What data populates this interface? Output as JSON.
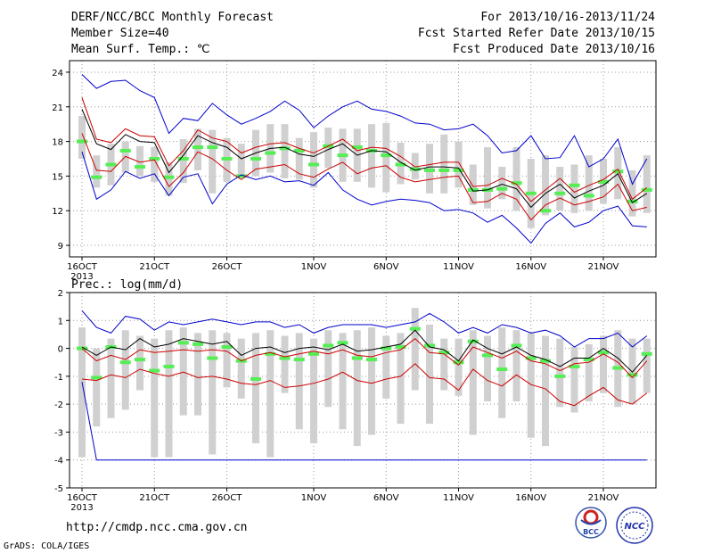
{
  "header": {
    "title": "DERF/NCC/BCC Monthly Forecast",
    "member_size": "Member Size=40",
    "variable_top": "Mean Surf. Temp.: ℃",
    "period": "For 2013/10/16-2013/11/24",
    "started": "Fcst Started Refer Date 2013/10/15",
    "produced": "Fcst Produced Date 2013/10/16"
  },
  "footer": {
    "url": "http://cmdp.ncc.cma.gov.cn",
    "grads": "GrADS: COLA/IGES",
    "logo_bcc": "BCC",
    "logo_ncc": "NCC"
  },
  "colors": {
    "ensemble_max_min": "#0000cc",
    "spread": "#cc0000",
    "mean": "#000000",
    "box": "#d0d0d0",
    "median": "#55ee55"
  },
  "chart_data": [
    {
      "type": "box-line",
      "title": "Mean Surf. Temp.: ℃",
      "x_tick_labels": [
        "16OCT",
        "21OCT",
        "26OCT",
        "1NOV",
        "6NOV",
        "11NOV",
        "16NOV",
        "21NOV"
      ],
      "x_tick_days": [
        0,
        5,
        10,
        16,
        21,
        26,
        31,
        36
      ],
      "year_label": "2013",
      "ylim": [
        8,
        25
      ],
      "y_ticks": [
        9,
        12,
        15,
        18,
        21,
        24
      ],
      "grid": true,
      "series": {
        "max": [
          23.8,
          22.6,
          23.2,
          23.3,
          22.4,
          21.8,
          18.7,
          20.0,
          19.8,
          21.3,
          20.3,
          19.5,
          20.0,
          20.6,
          21.5,
          20.7,
          19.2,
          20.2,
          21.0,
          21.5,
          20.8,
          20.6,
          20.2,
          19.6,
          19.5,
          19.0,
          19.1,
          19.5,
          18.5,
          17.0,
          17.2,
          18.5,
          16.5,
          16.6,
          18.5,
          15.8,
          16.5,
          18.2,
          14.3,
          16.5
        ],
        "mean": [
          20.8,
          17.8,
          17.3,
          18.6,
          18.0,
          17.9,
          15.3,
          16.8,
          18.5,
          17.9,
          17.5,
          16.5,
          17.0,
          17.4,
          17.5,
          16.9,
          16.7,
          17.3,
          17.8,
          16.8,
          17.2,
          17.1,
          16.2,
          15.5,
          15.8,
          15.8,
          15.7,
          13.7,
          13.8,
          14.3,
          13.9,
          12.3,
          13.5,
          14.3,
          13.1,
          13.7,
          14.2,
          15.2,
          12.7,
          13.5
        ],
        "upper": [
          21.8,
          18.2,
          17.9,
          19.1,
          18.5,
          18.4,
          15.9,
          17.2,
          19.0,
          18.3,
          18.0,
          17.0,
          17.5,
          17.8,
          17.9,
          17.4,
          17.0,
          17.6,
          18.2,
          17.2,
          17.5,
          17.4,
          16.7,
          15.8,
          16.0,
          16.2,
          16.2,
          14.1,
          14.2,
          14.8,
          14.3,
          12.8,
          13.8,
          14.8,
          13.6,
          14.2,
          14.7,
          15.6,
          13.0,
          14.0
        ],
        "lower": [
          18.7,
          15.5,
          15.4,
          16.7,
          16.2,
          16.4,
          14.1,
          15.3,
          17.1,
          16.5,
          15.5,
          14.7,
          15.6,
          15.8,
          16.0,
          15.2,
          14.9,
          15.6,
          16.2,
          15.2,
          15.7,
          15.9,
          14.9,
          14.5,
          14.7,
          14.9,
          15.0,
          12.7,
          12.8,
          13.5,
          13.0,
          11.2,
          12.5,
          13.1,
          12.5,
          12.8,
          13.2,
          14.3,
          12.0,
          12.3
        ],
        "min": [
          17.1,
          13.0,
          13.8,
          15.4,
          14.8,
          15.2,
          13.3,
          14.9,
          15.2,
          12.6,
          14.3,
          15.1,
          14.7,
          15.0,
          14.5,
          14.6,
          14.2,
          15.3,
          13.8,
          13.0,
          12.5,
          12.8,
          13.0,
          12.9,
          12.7,
          12.0,
          12.1,
          11.8,
          11.0,
          11.6,
          10.5,
          9.2,
          10.9,
          11.8,
          10.6,
          11.0,
          12.0,
          12.4,
          10.7,
          10.6
        ],
        "box_high": [
          20.2,
          16.8,
          17.8,
          18.0,
          17.6,
          17.5,
          16.2,
          18.2,
          19.1,
          19.0,
          18.3,
          17.8,
          19.0,
          19.5,
          19.5,
          18.3,
          18.8,
          19.2,
          19.1,
          19.1,
          19.5,
          19.6,
          17.9,
          17.0,
          17.8,
          18.6,
          18.0,
          16.0,
          17.5,
          15.8,
          17.5,
          16.5,
          16.8,
          15.8,
          16.0,
          16.8,
          16.5,
          17.5,
          15.5,
          16.8
        ],
        "box_low": [
          16.5,
          14.0,
          14.2,
          15.3,
          15.0,
          14.5,
          13.3,
          14.4,
          15.5,
          13.5,
          14.5,
          15.0,
          15.0,
          15.3,
          14.8,
          14.7,
          14.0,
          15.7,
          14.5,
          14.5,
          14.0,
          13.6,
          14.3,
          14.7,
          13.5,
          13.5,
          14.0,
          12.5,
          12.2,
          13.0,
          12.0,
          10.5,
          11.6,
          12.0,
          11.8,
          12.0,
          12.6,
          13.0,
          11.5,
          11.8
        ],
        "median": [
          18.0,
          14.9,
          16.0,
          17.2,
          15.8,
          16.5,
          14.9,
          16.5,
          17.5,
          17.5,
          16.5,
          15.0,
          16.5,
          17.0,
          17.4,
          17.2,
          16.0,
          17.6,
          16.8,
          17.5,
          17.2,
          16.8,
          16.0,
          15.6,
          15.5,
          15.5,
          15.5,
          13.8,
          13.8,
          13.9,
          14.4,
          13.5,
          12.0,
          13.5,
          14.2,
          13.3,
          14.5,
          15.4,
          12.8,
          13.8
        ]
      }
    },
    {
      "type": "box-line",
      "title": "Prec.: log(mm/d)",
      "x_tick_labels": [
        "16OCT",
        "21OCT",
        "26OCT",
        "1NOV",
        "6NOV",
        "11NOV",
        "16NOV",
        "21NOV"
      ],
      "x_tick_days": [
        0,
        5,
        10,
        16,
        21,
        26,
        31,
        36
      ],
      "year_label": "2013",
      "ylim": [
        -5,
        2
      ],
      "y_ticks": [
        -5,
        -4,
        -3,
        -2,
        -1,
        0,
        1,
        2
      ],
      "grid": true,
      "series": {
        "max": [
          1.35,
          0.75,
          0.55,
          1.15,
          1.05,
          0.65,
          0.95,
          0.85,
          0.95,
          1.05,
          0.95,
          0.85,
          0.95,
          0.95,
          0.75,
          0.85,
          0.55,
          0.75,
          0.85,
          0.85,
          0.85,
          0.75,
          0.85,
          0.95,
          1.25,
          0.95,
          0.55,
          0.75,
          0.55,
          0.85,
          0.75,
          0.55,
          0.65,
          0.45,
          0.05,
          0.35,
          0.35,
          0.55,
          0.05,
          0.45
        ],
        "mean": [
          0.05,
          -0.25,
          0.05,
          -0.05,
          0.35,
          0.05,
          0.15,
          0.35,
          0.25,
          0.15,
          0.25,
          -0.25,
          0.0,
          0.05,
          -0.15,
          0.0,
          0.05,
          -0.05,
          0.15,
          -0.1,
          -0.05,
          0.05,
          0.15,
          0.65,
          0.05,
          -0.05,
          -0.45,
          0.3,
          0.0,
          -0.2,
          0.05,
          -0.25,
          -0.4,
          -0.65,
          -0.35,
          -0.35,
          0.0,
          -0.35,
          -0.85,
          -0.25
        ],
        "upper": [
          0.0,
          -0.45,
          -0.25,
          -0.4,
          -0.05,
          -0.15,
          -0.1,
          -0.05,
          -0.1,
          -0.05,
          -0.1,
          -0.45,
          -0.25,
          -0.15,
          -0.3,
          -0.2,
          -0.1,
          -0.2,
          -0.05,
          -0.25,
          -0.3,
          -0.15,
          -0.05,
          0.35,
          -0.15,
          -0.2,
          -0.6,
          0.05,
          -0.15,
          -0.35,
          -0.1,
          -0.45,
          -0.55,
          -0.8,
          -0.55,
          -0.5,
          -0.2,
          -0.5,
          -1.05,
          -0.45
        ],
        "lower": [
          -1.1,
          -1.15,
          -0.95,
          -1.05,
          -0.75,
          -0.9,
          -1.0,
          -0.85,
          -1.05,
          -1.0,
          -1.1,
          -1.25,
          -1.3,
          -1.15,
          -1.4,
          -1.35,
          -1.25,
          -1.1,
          -0.85,
          -1.15,
          -1.25,
          -1.1,
          -1.0,
          -0.55,
          -1.05,
          -1.1,
          -1.5,
          -0.75,
          -1.15,
          -1.35,
          -0.95,
          -1.3,
          -1.45,
          -1.9,
          -2.05,
          -1.7,
          -1.4,
          -1.85,
          -2.0,
          -1.6
        ],
        "min": [
          -1.2,
          -4.0,
          -4.0,
          -4.0,
          -4.0,
          -4.0,
          -4.0,
          -4.0,
          -4.0,
          -4.0,
          -4.0,
          -4.0,
          -4.0,
          -4.0,
          -4.0,
          -4.0,
          -4.0,
          -4.0,
          -4.0,
          -4.0,
          -4.0,
          -4.0,
          -4.0,
          -4.0,
          -4.0,
          -4.0,
          -4.0,
          -4.0,
          -4.0,
          -4.0,
          -4.0,
          -4.0,
          -4.0,
          -4.0,
          -4.0,
          -4.0,
          -4.0,
          -4.0,
          -4.0,
          -4.0
        ],
        "box_high": [
          0.75,
          0.0,
          0.35,
          0.65,
          0.45,
          0.35,
          0.65,
          0.75,
          0.55,
          0.65,
          0.55,
          0.35,
          0.55,
          0.65,
          0.45,
          0.55,
          0.35,
          0.65,
          0.55,
          0.65,
          0.75,
          0.45,
          0.55,
          1.45,
          0.85,
          0.35,
          0.35,
          0.65,
          0.45,
          0.75,
          0.65,
          0.55,
          0.45,
          0.35,
          0.05,
          0.15,
          0.45,
          0.65,
          0.35,
          0.35
        ],
        "box_low": [
          -3.9,
          -2.8,
          -2.5,
          -2.2,
          -1.5,
          -3.9,
          -3.9,
          -2.4,
          -2.4,
          -3.8,
          -1.4,
          -1.8,
          -3.4,
          -3.9,
          -1.6,
          -2.9,
          -3.4,
          -2.1,
          -2.9,
          -3.5,
          -3.1,
          -1.8,
          -2.7,
          -1.5,
          -2.7,
          -1.5,
          -1.7,
          -3.1,
          -1.9,
          -2.5,
          -1.9,
          -3.2,
          -3.5,
          -2.1,
          -2.3,
          -1.9,
          -1.6,
          -2.1,
          -2.0,
          -1.6
        ],
        "median": [
          0.0,
          -1.05,
          0.05,
          -0.5,
          -0.4,
          -0.8,
          -0.65,
          0.2,
          0.15,
          -0.35,
          0.05,
          -0.45,
          -1.1,
          -0.2,
          -0.35,
          -0.4,
          -0.2,
          0.1,
          0.2,
          -0.35,
          -0.4,
          0.0,
          0.05,
          0.7,
          0.1,
          -0.15,
          -0.5,
          0.25,
          -0.25,
          -0.75,
          0.1,
          -0.35,
          -0.45,
          -1.0,
          -0.65,
          -0.4,
          -0.15,
          -0.7,
          -0.95,
          -0.2
        ]
      }
    }
  ]
}
